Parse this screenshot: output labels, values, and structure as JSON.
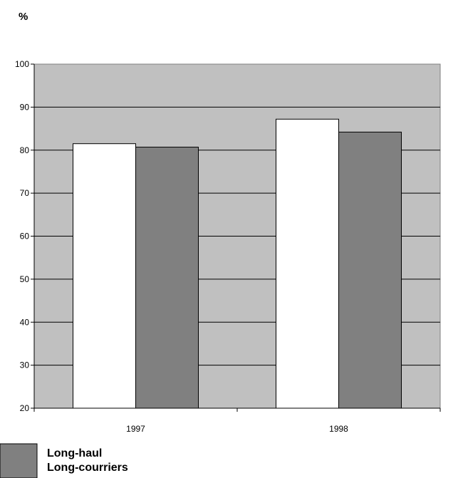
{
  "chart_data": {
    "type": "bar",
    "unit_label": "%",
    "categories": [
      "1997",
      "1998"
    ],
    "series": [
      {
        "values": [
          81.5,
          87.2
        ],
        "color": "#ffffff"
      },
      {
        "values": [
          80.7,
          84.2
        ],
        "color": "#808080"
      }
    ],
    "ylim": [
      20,
      100
    ],
    "yticks": [
      20,
      30,
      40,
      50,
      60,
      70,
      80,
      90,
      100
    ],
    "grid": true,
    "plot_background": "#c0c0c0",
    "legend": {
      "placement": "bottom-left",
      "swatch_color": "#808080",
      "lines": [
        "Long-haul",
        "Long-courriers"
      ]
    }
  }
}
